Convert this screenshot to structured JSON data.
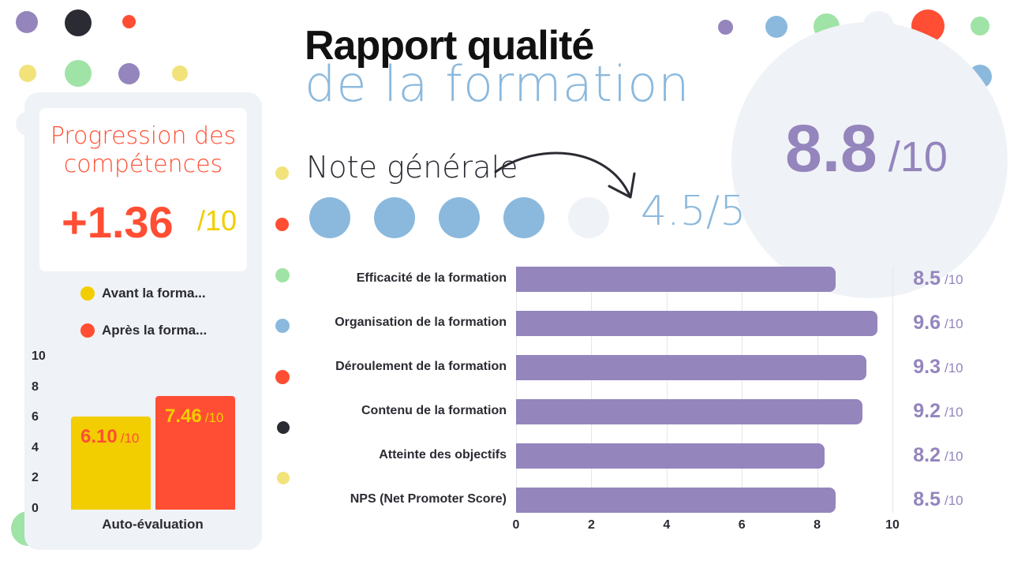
{
  "header": {
    "title_line1": "Rapport qualité",
    "title_line2": "de la formation"
  },
  "overall": {
    "score": "8.8",
    "denominator": "/10",
    "label": "Note générale",
    "rating_text": "4.5/5",
    "rating_value": 4.5,
    "rating_max": 5,
    "filled_color": "#8bb9dd",
    "empty_color": "#eff2f6"
  },
  "progression": {
    "title_line1": "Progression des",
    "title_line2": "compétences",
    "value": "+1.36",
    "denominator": "/10"
  },
  "colors": {
    "purple": "#9485bd",
    "yellow": "#f2cd00",
    "red": "#ff4e33",
    "blue": "#8bb9dd",
    "green": "#9fe3a6",
    "dark": "#2b2b33"
  },
  "chart_data": [
    {
      "type": "bar",
      "xlabel": "",
      "ylabel": "",
      "ylim": [
        0,
        10
      ],
      "yticks": [
        "0",
        "2",
        "4",
        "6",
        "8",
        "10"
      ],
      "categories": [
        "Auto-évaluation"
      ],
      "series": [
        {
          "name": "Avant la forma...",
          "values": [
            6.1
          ],
          "label": "6.10",
          "unit": "/10",
          "color": "#f2cd00"
        },
        {
          "name": "Après la forma...",
          "values": [
            7.46
          ],
          "label": "7.46",
          "unit": "/10",
          "color": "#ff4e33"
        }
      ],
      "legend": "top",
      "grid": false
    },
    {
      "type": "bar",
      "orientation": "horizontal",
      "xlim": [
        0,
        10
      ],
      "xticks": [
        "0",
        "2",
        "4",
        "6",
        "8",
        "10"
      ],
      "grid": true,
      "categories": [
        "Efficacité de la formation",
        "Organisation de la formation",
        "Déroulement de la formation",
        "Contenu de la formation",
        "Atteinte des objectifs",
        "NPS (Net Promoter Score)"
      ],
      "values": [
        8.5,
        9.6,
        9.3,
        9.2,
        8.2,
        8.5
      ],
      "value_labels": [
        "8.5",
        "9.6",
        "9.3",
        "9.2",
        "8.2",
        "8.5"
      ],
      "unit": "/10",
      "color": "#9485bd"
    }
  ]
}
